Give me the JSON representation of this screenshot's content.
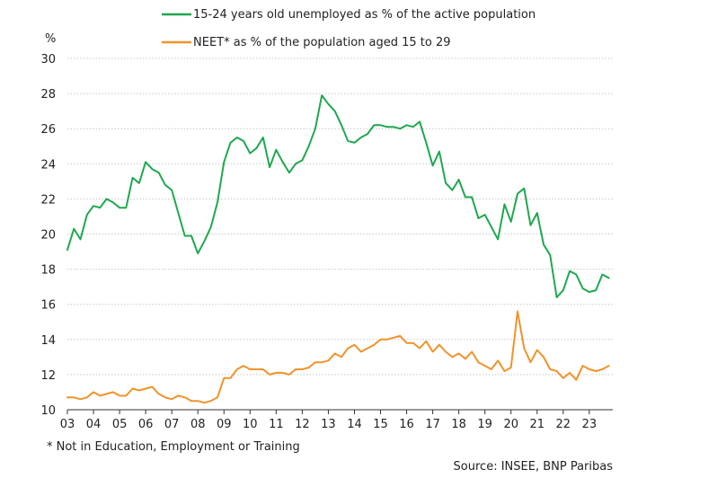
{
  "chart_data": {
    "type": "line",
    "title": "",
    "ylabel": "%",
    "xlabel": "",
    "ylim": [
      10,
      30
    ],
    "yticks": [
      10,
      12,
      14,
      16,
      18,
      20,
      22,
      24,
      26,
      28,
      30
    ],
    "xlim": [
      2003,
      2023.9
    ],
    "x_tick_labels": [
      "03",
      "04",
      "05",
      "06",
      "07",
      "08",
      "09",
      "10",
      "11",
      "12",
      "13",
      "14",
      "15",
      "16",
      "17",
      "18",
      "19",
      "20",
      "21",
      "22",
      "23"
    ],
    "grid": true,
    "legend_position": "top",
    "series": [
      {
        "name": "15-24 years old unemployed as % of the active population",
        "color": "#1fa84f",
        "x": [
          2003.0,
          2003.25,
          2003.5,
          2003.75,
          2004.0,
          2004.25,
          2004.5,
          2004.75,
          2005.0,
          2005.25,
          2005.5,
          2005.75,
          2006.0,
          2006.25,
          2006.5,
          2006.75,
          2007.0,
          2007.25,
          2007.5,
          2007.75,
          2008.0,
          2008.25,
          2008.5,
          2008.75,
          2009.0,
          2009.25,
          2009.5,
          2009.75,
          2010.0,
          2010.25,
          2010.5,
          2010.75,
          2011.0,
          2011.25,
          2011.5,
          2011.75,
          2012.0,
          2012.25,
          2012.5,
          2012.75,
          2013.0,
          2013.25,
          2013.5,
          2013.75,
          2014.0,
          2014.25,
          2014.5,
          2014.75,
          2015.0,
          2015.25,
          2015.5,
          2015.75,
          2016.0,
          2016.25,
          2016.5,
          2016.75,
          2017.0,
          2017.25,
          2017.5,
          2017.75,
          2018.0,
          2018.25,
          2018.5,
          2018.75,
          2019.0,
          2019.25,
          2019.5,
          2019.75,
          2020.0,
          2020.25,
          2020.5,
          2020.75,
          2021.0,
          2021.25,
          2021.5,
          2021.75,
          2022.0,
          2022.25,
          2022.5,
          2022.75,
          2023.0,
          2023.25,
          2023.5,
          2023.75
        ],
        "values": [
          19.1,
          20.3,
          19.7,
          21.1,
          21.6,
          21.5,
          22.0,
          21.8,
          21.5,
          21.5,
          23.2,
          22.9,
          24.1,
          23.7,
          23.5,
          22.8,
          22.5,
          21.2,
          19.9,
          19.9,
          18.9,
          19.6,
          20.4,
          21.8,
          24.1,
          25.2,
          25.5,
          25.3,
          24.6,
          24.9,
          25.5,
          23.8,
          24.8,
          24.1,
          23.5,
          24.0,
          24.2,
          25.0,
          26.0,
          27.9,
          27.4,
          27.0,
          26.2,
          25.3,
          25.2,
          25.5,
          25.7,
          26.2,
          26.2,
          26.1,
          26.1,
          26.0,
          26.2,
          26.1,
          26.4,
          25.2,
          23.9,
          24.7,
          22.9,
          22.5,
          23.1,
          22.1,
          22.1,
          20.9,
          21.1,
          20.4,
          19.7,
          21.7,
          20.7,
          22.3,
          22.6,
          20.5,
          21.2,
          19.4,
          18.8,
          16.4,
          16.8,
          17.9,
          17.7,
          16.9,
          16.7,
          16.8,
          17.7,
          17.5
        ]
      },
      {
        "name": "NEET* as % of the population aged 15 to 29",
        "color": "#f0932b",
        "x": [
          2003.0,
          2003.25,
          2003.5,
          2003.75,
          2004.0,
          2004.25,
          2004.5,
          2004.75,
          2005.0,
          2005.25,
          2005.5,
          2005.75,
          2006.0,
          2006.25,
          2006.5,
          2006.75,
          2007.0,
          2007.25,
          2007.5,
          2007.75,
          2008.0,
          2008.25,
          2008.5,
          2008.75,
          2009.0,
          2009.25,
          2009.5,
          2009.75,
          2010.0,
          2010.25,
          2010.5,
          2010.75,
          2011.0,
          2011.25,
          2011.5,
          2011.75,
          2012.0,
          2012.25,
          2012.5,
          2012.75,
          2013.0,
          2013.25,
          2013.5,
          2013.75,
          2014.0,
          2014.25,
          2014.5,
          2014.75,
          2015.0,
          2015.25,
          2015.5,
          2015.75,
          2016.0,
          2016.25,
          2016.5,
          2016.75,
          2017.0,
          2017.25,
          2017.5,
          2017.75,
          2018.0,
          2018.25,
          2018.5,
          2018.75,
          2019.0,
          2019.25,
          2019.5,
          2019.75,
          2020.0,
          2020.25,
          2020.5,
          2020.75,
          2021.0,
          2021.25,
          2021.5,
          2021.75,
          2022.0,
          2022.25,
          2022.5,
          2022.75,
          2023.0,
          2023.25,
          2023.5,
          2023.75
        ],
        "values": [
          10.7,
          10.7,
          10.6,
          10.7,
          11.0,
          10.8,
          10.9,
          11.0,
          10.8,
          10.8,
          11.2,
          11.1,
          11.2,
          11.3,
          10.9,
          10.7,
          10.6,
          10.8,
          10.7,
          10.5,
          10.5,
          10.4,
          10.5,
          10.7,
          11.8,
          11.8,
          12.3,
          12.5,
          12.3,
          12.3,
          12.3,
          12.0,
          12.1,
          12.1,
          12.0,
          12.3,
          12.3,
          12.4,
          12.7,
          12.7,
          12.8,
          13.2,
          13.0,
          13.5,
          13.7,
          13.3,
          13.5,
          13.7,
          14.0,
          14.0,
          14.1,
          14.2,
          13.8,
          13.8,
          13.5,
          13.9,
          13.3,
          13.7,
          13.3,
          13.0,
          13.2,
          12.9,
          13.3,
          12.7,
          12.5,
          12.3,
          12.8,
          12.2,
          12.4,
          15.6,
          13.5,
          12.7,
          13.4,
          13.0,
          12.3,
          12.2,
          11.8,
          12.1,
          11.7,
          12.5,
          12.3,
          12.2,
          12.3,
          12.5
        ]
      }
    ],
    "footnote": "* Not in Education, Employment or Training",
    "source": "Source: INSEE, BNP Paribas"
  }
}
